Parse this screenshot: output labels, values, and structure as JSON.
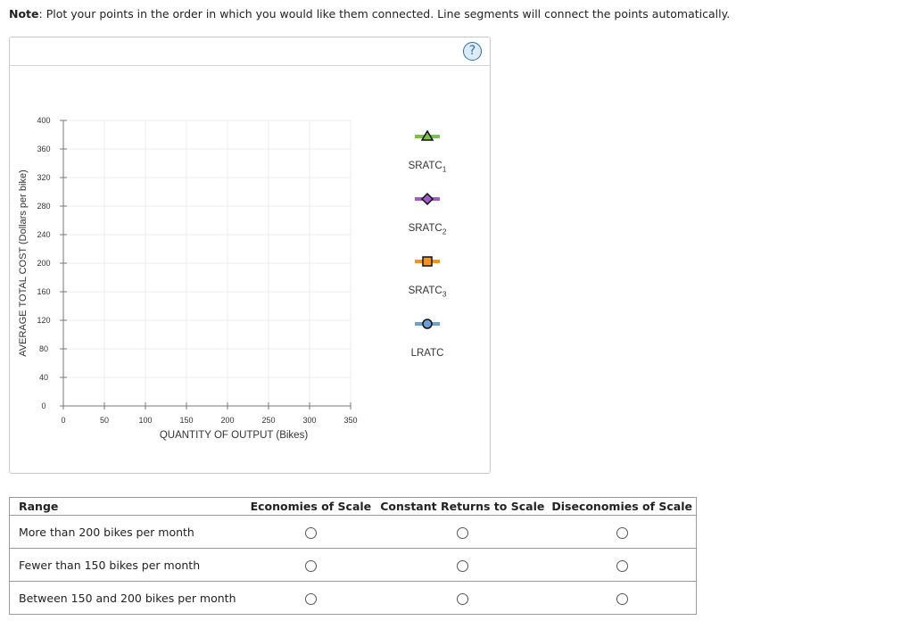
{
  "note": {
    "label": "Note",
    "text": ": Plot your points in the order in which you would like them connected. Line segments will connect the points automatically."
  },
  "graph_panel": {
    "help_icon": "question-mark-icon",
    "help_text": "?"
  },
  "chart_data": {
    "type": "line",
    "xlabel": "QUANTITY OF OUTPUT (Bikes)",
    "ylabel": "AVERAGE TOTAL COST (Dollars per bike)",
    "xlim": [
      0,
      350
    ],
    "ylim": [
      0,
      400
    ],
    "x_ticks": [
      0,
      50,
      100,
      150,
      200,
      250,
      300,
      350
    ],
    "y_ticks": [
      0,
      40,
      80,
      120,
      160,
      200,
      240,
      280,
      320,
      360,
      400
    ],
    "grid": true,
    "series": []
  },
  "tools": [
    {
      "name": "SRATC",
      "sub": "1",
      "marker": "triangle",
      "color": "#7cc04b",
      "icon": "triangle-marker-icon"
    },
    {
      "name": "SRATC",
      "sub": "2",
      "marker": "diamond",
      "color": "#a05cc4",
      "icon": "diamond-marker-icon"
    },
    {
      "name": "SRATC",
      "sub": "3",
      "marker": "square",
      "color": "#f0961e",
      "icon": "square-marker-icon"
    },
    {
      "name": "LRATC",
      "sub": "",
      "marker": "circle",
      "color": "#6b9fd6",
      "icon": "circle-marker-icon"
    }
  ],
  "table": {
    "headers": [
      "Range",
      "Economies of Scale",
      "Constant Returns to Scale",
      "Diseconomies of Scale"
    ],
    "rows": [
      {
        "label": "More than 200 bikes per month"
      },
      {
        "label": "Fewer than 150 bikes per month"
      },
      {
        "label": "Between 150 and 200 bikes per month"
      }
    ]
  }
}
